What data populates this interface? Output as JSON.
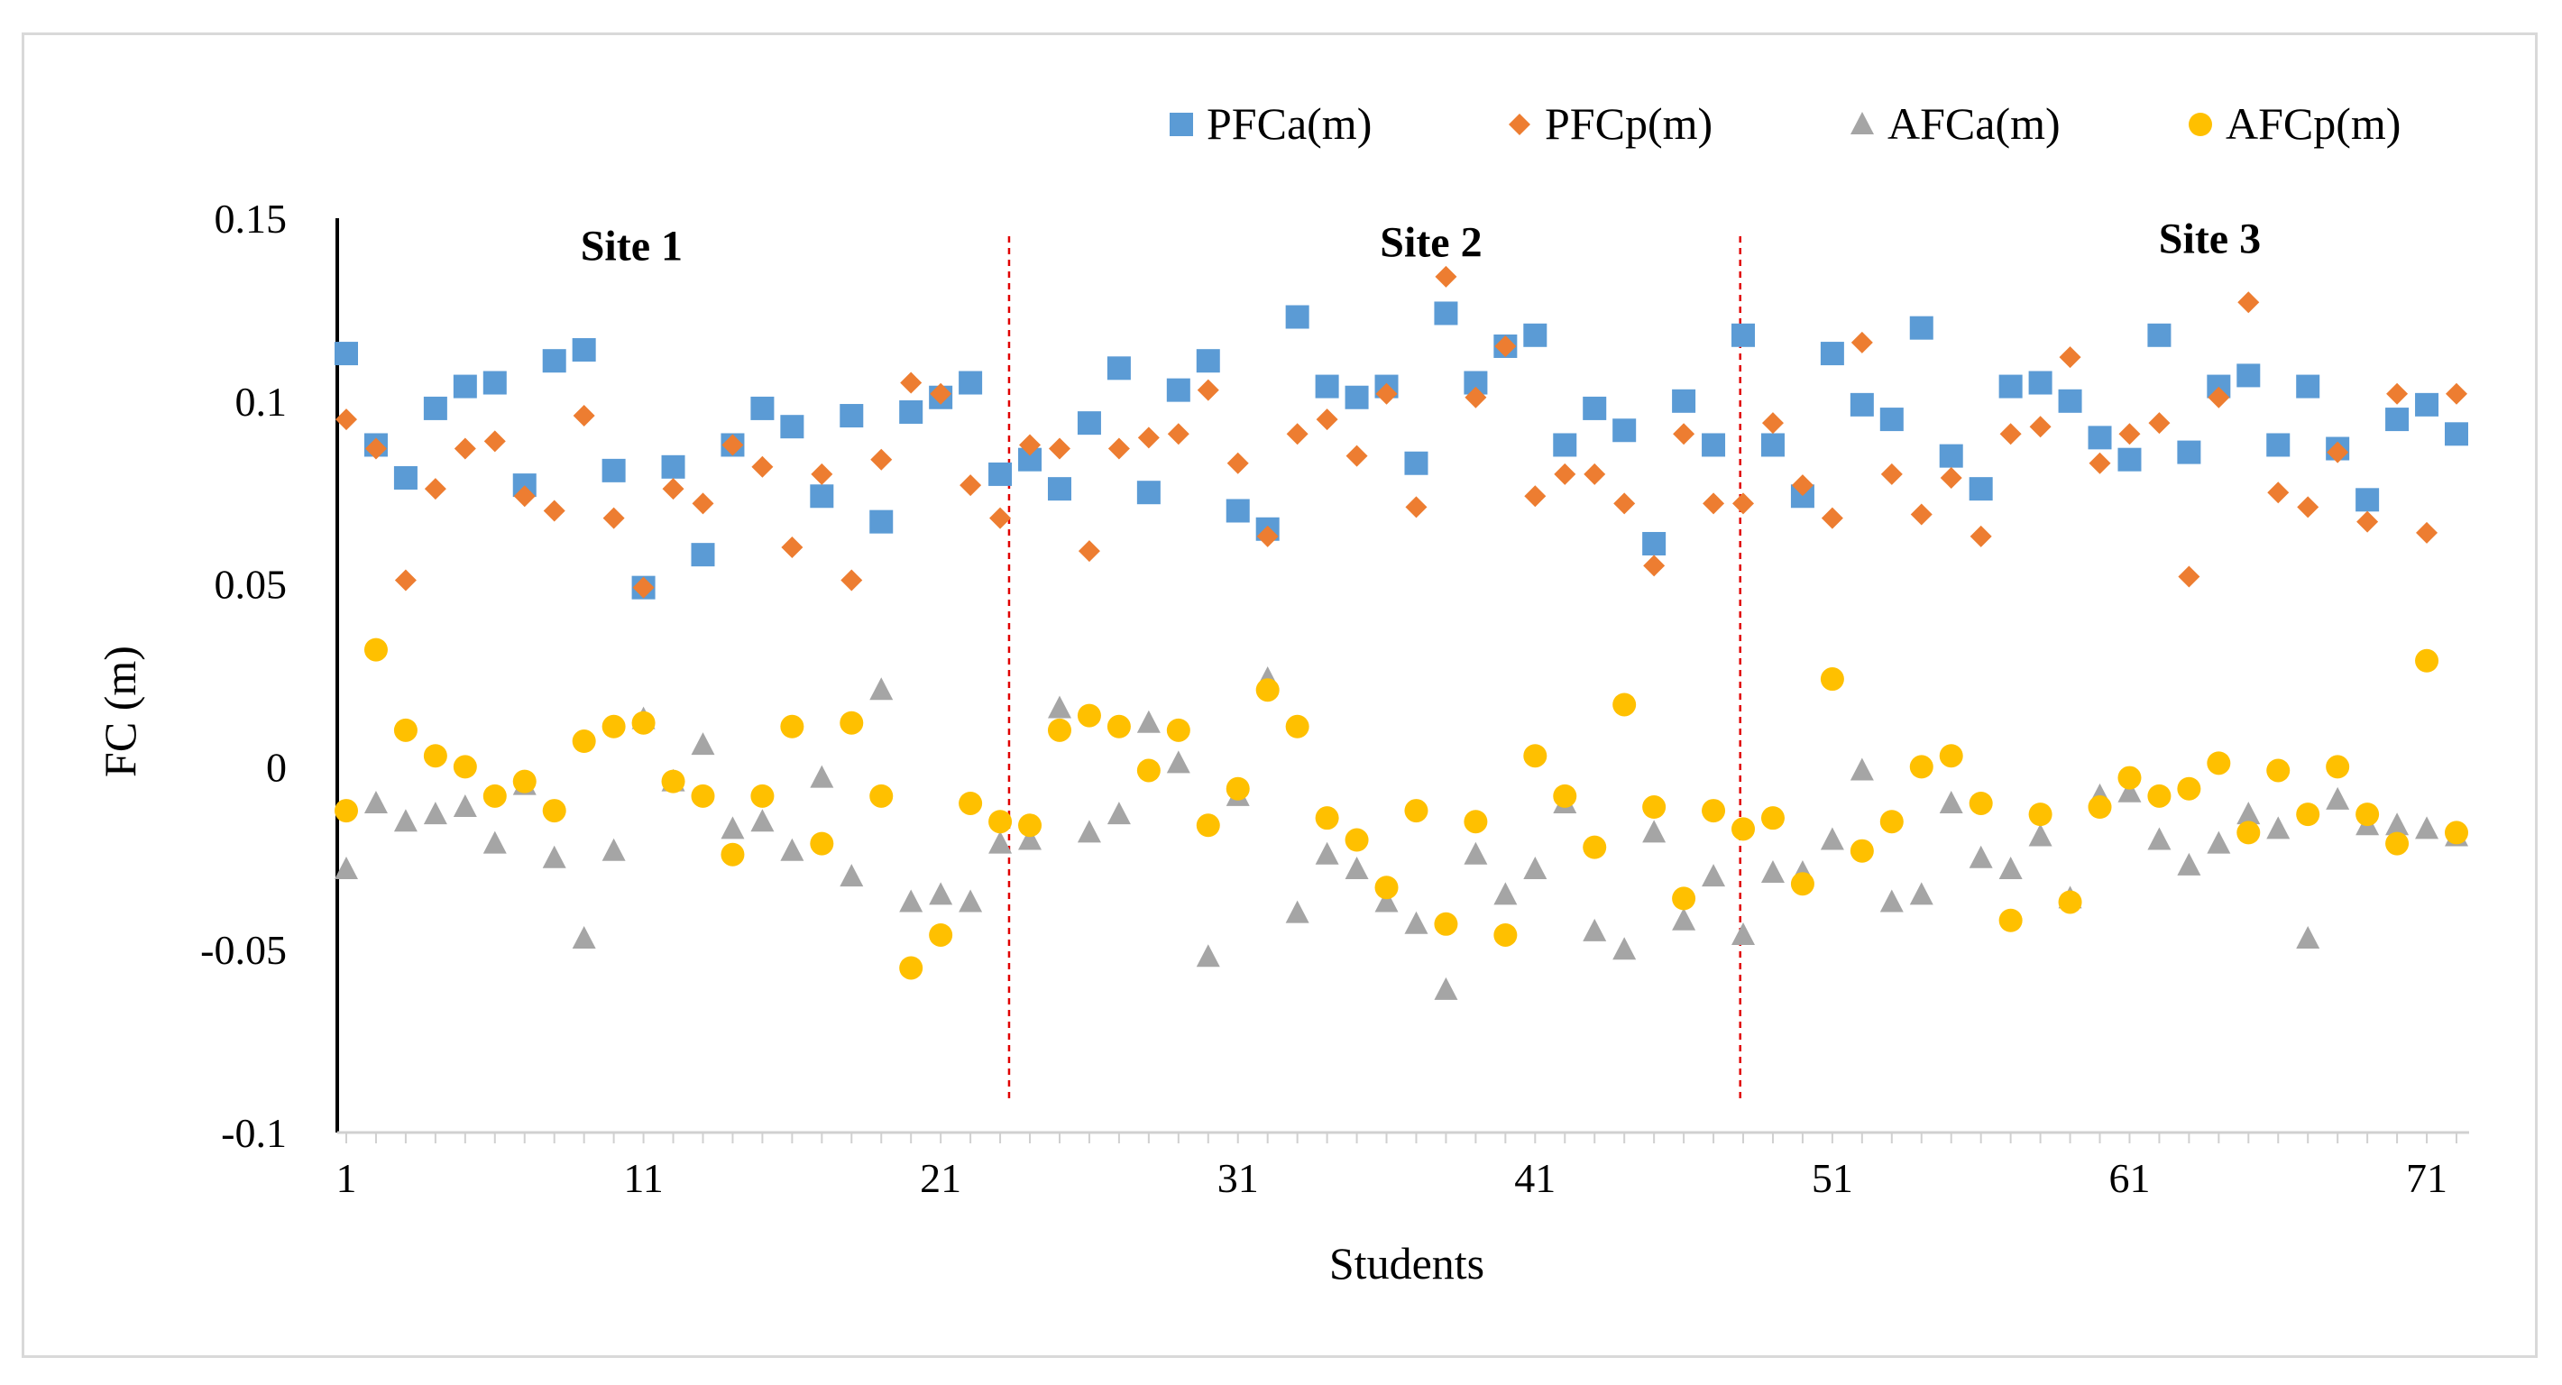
{
  "chart_data": {
    "type": "scatter",
    "title": "",
    "xlabel": "Students",
    "ylabel": "FC (m)",
    "xlim": [
      1,
      72
    ],
    "ylim": [
      -0.1,
      0.15
    ],
    "x_ticks": [
      1,
      11,
      21,
      31,
      41,
      51,
      61,
      71
    ],
    "y_ticks": [
      0.15,
      0.1,
      0.05,
      0,
      -0.05,
      -0.1
    ],
    "y_tick_labels": [
      "0.15",
      "0.1",
      "0.05",
      "0",
      "-0.05",
      "-0.1"
    ],
    "legend_position": "top-right",
    "site_dividers": [
      23.3,
      47.9
    ],
    "site_labels": [
      {
        "text": "Site 1",
        "x": 10.6,
        "y": 0.1385
      },
      {
        "text": "Site 2",
        "x": 37.5,
        "y": 0.1395
      },
      {
        "text": "Site 3",
        "x": 63.7,
        "y": 0.1405
      }
    ],
    "series": [
      {
        "name": "PFCa(m)",
        "marker": "square",
        "color": "#5b9bd5",
        "values": [
          0.113,
          0.088,
          0.079,
          0.098,
          0.104,
          0.105,
          0.077,
          0.111,
          0.114,
          0.081,
          0.049,
          0.082,
          0.058,
          0.088,
          0.098,
          0.093,
          0.074,
          0.096,
          0.067,
          0.097,
          0.101,
          0.105,
          0.08,
          0.084,
          0.076,
          0.094,
          0.109,
          0.075,
          0.103,
          0.111,
          0.07,
          0.065,
          0.123,
          0.104,
          0.101,
          0.104,
          0.083,
          0.124,
          0.105,
          0.115,
          0.118,
          0.088,
          0.098,
          0.092,
          0.061,
          0.1,
          0.088,
          0.118,
          0.088,
          0.074,
          0.113,
          0.099,
          0.095,
          0.12,
          0.085,
          0.076,
          0.104,
          0.105,
          0.1,
          0.09,
          0.084,
          0.118,
          0.086,
          0.104,
          0.107,
          0.088,
          0.104,
          0.087,
          0.073,
          0.095,
          0.099,
          0.091
        ]
      },
      {
        "name": "PFCp(m)",
        "marker": "diamond",
        "color": "#ed7d31",
        "values": [
          0.095,
          0.087,
          0.051,
          0.076,
          0.087,
          0.089,
          0.074,
          0.07,
          0.096,
          0.068,
          0.049,
          0.076,
          0.072,
          0.088,
          0.082,
          0.06,
          0.08,
          0.051,
          0.084,
          0.105,
          0.102,
          0.077,
          0.068,
          0.088,
          0.087,
          0.059,
          0.087,
          0.09,
          0.091,
          0.103,
          0.083,
          0.063,
          0.091,
          0.095,
          0.085,
          0.102,
          0.071,
          0.134,
          0.101,
          0.115,
          0.074,
          0.08,
          0.08,
          0.072,
          0.055,
          0.091,
          0.072,
          0.072,
          0.094,
          0.077,
          0.068,
          0.116,
          0.08,
          0.069,
          0.079,
          0.063,
          0.091,
          0.093,
          0.112,
          0.083,
          0.091,
          0.094,
          0.052,
          0.101,
          0.127,
          0.075,
          0.071,
          0.086,
          0.067,
          0.102,
          0.064,
          0.102
        ]
      },
      {
        "name": "AFCa(m)",
        "marker": "triangle",
        "color": "#a5a5a5",
        "values": [
          -0.028,
          -0.01,
          -0.015,
          -0.013,
          -0.011,
          -0.021,
          -0.005,
          -0.025,
          -0.047,
          -0.023,
          0.013,
          -0.004,
          0.006,
          -0.017,
          -0.015,
          -0.023,
          -0.003,
          -0.03,
          0.021,
          -0.037,
          -0.035,
          -0.037,
          -0.021,
          -0.02,
          0.016,
          -0.018,
          -0.013,
          0.012,
          0.001,
          -0.052,
          -0.008,
          0.024,
          -0.04,
          -0.024,
          -0.028,
          -0.037,
          -0.043,
          -0.061,
          -0.024,
          -0.035,
          -0.028,
          -0.01,
          -0.045,
          -0.05,
          -0.018,
          -0.042,
          -0.03,
          -0.046,
          -0.029,
          -0.029,
          -0.02,
          -0.001,
          -0.037,
          -0.035,
          -0.01,
          -0.025,
          -0.028,
          -0.019,
          -0.036,
          -0.008,
          -0.007,
          -0.02,
          -0.027,
          -0.021,
          -0.013,
          -0.017,
          -0.047,
          -0.009,
          -0.016,
          -0.016,
          -0.017,
          -0.019
        ]
      },
      {
        "name": "AFCp(m)",
        "marker": "circle",
        "color": "#ffc000",
        "values": [
          -0.012,
          0.032,
          0.01,
          0.003,
          0.0,
          -0.008,
          -0.004,
          -0.012,
          0.007,
          0.011,
          0.012,
          -0.004,
          -0.008,
          -0.024,
          -0.008,
          0.011,
          -0.021,
          0.012,
          -0.008,
          -0.055,
          -0.046,
          -0.01,
          -0.015,
          -0.016,
          0.01,
          0.014,
          0.011,
          -0.001,
          0.01,
          -0.016,
          -0.006,
          0.021,
          0.011,
          -0.014,
          -0.02,
          -0.033,
          -0.012,
          -0.043,
          -0.015,
          -0.046,
          0.003,
          -0.008,
          -0.022,
          0.017,
          -0.011,
          -0.036,
          -0.012,
          -0.017,
          -0.014,
          -0.032,
          0.024,
          -0.023,
          -0.015,
          0.0,
          0.003,
          -0.01,
          -0.042,
          -0.013,
          -0.037,
          -0.011,
          -0.003,
          -0.008,
          -0.006,
          0.001,
          -0.018,
          -0.001,
          -0.013,
          0.0,
          -0.013,
          -0.021,
          0.029,
          -0.018
        ]
      }
    ]
  }
}
